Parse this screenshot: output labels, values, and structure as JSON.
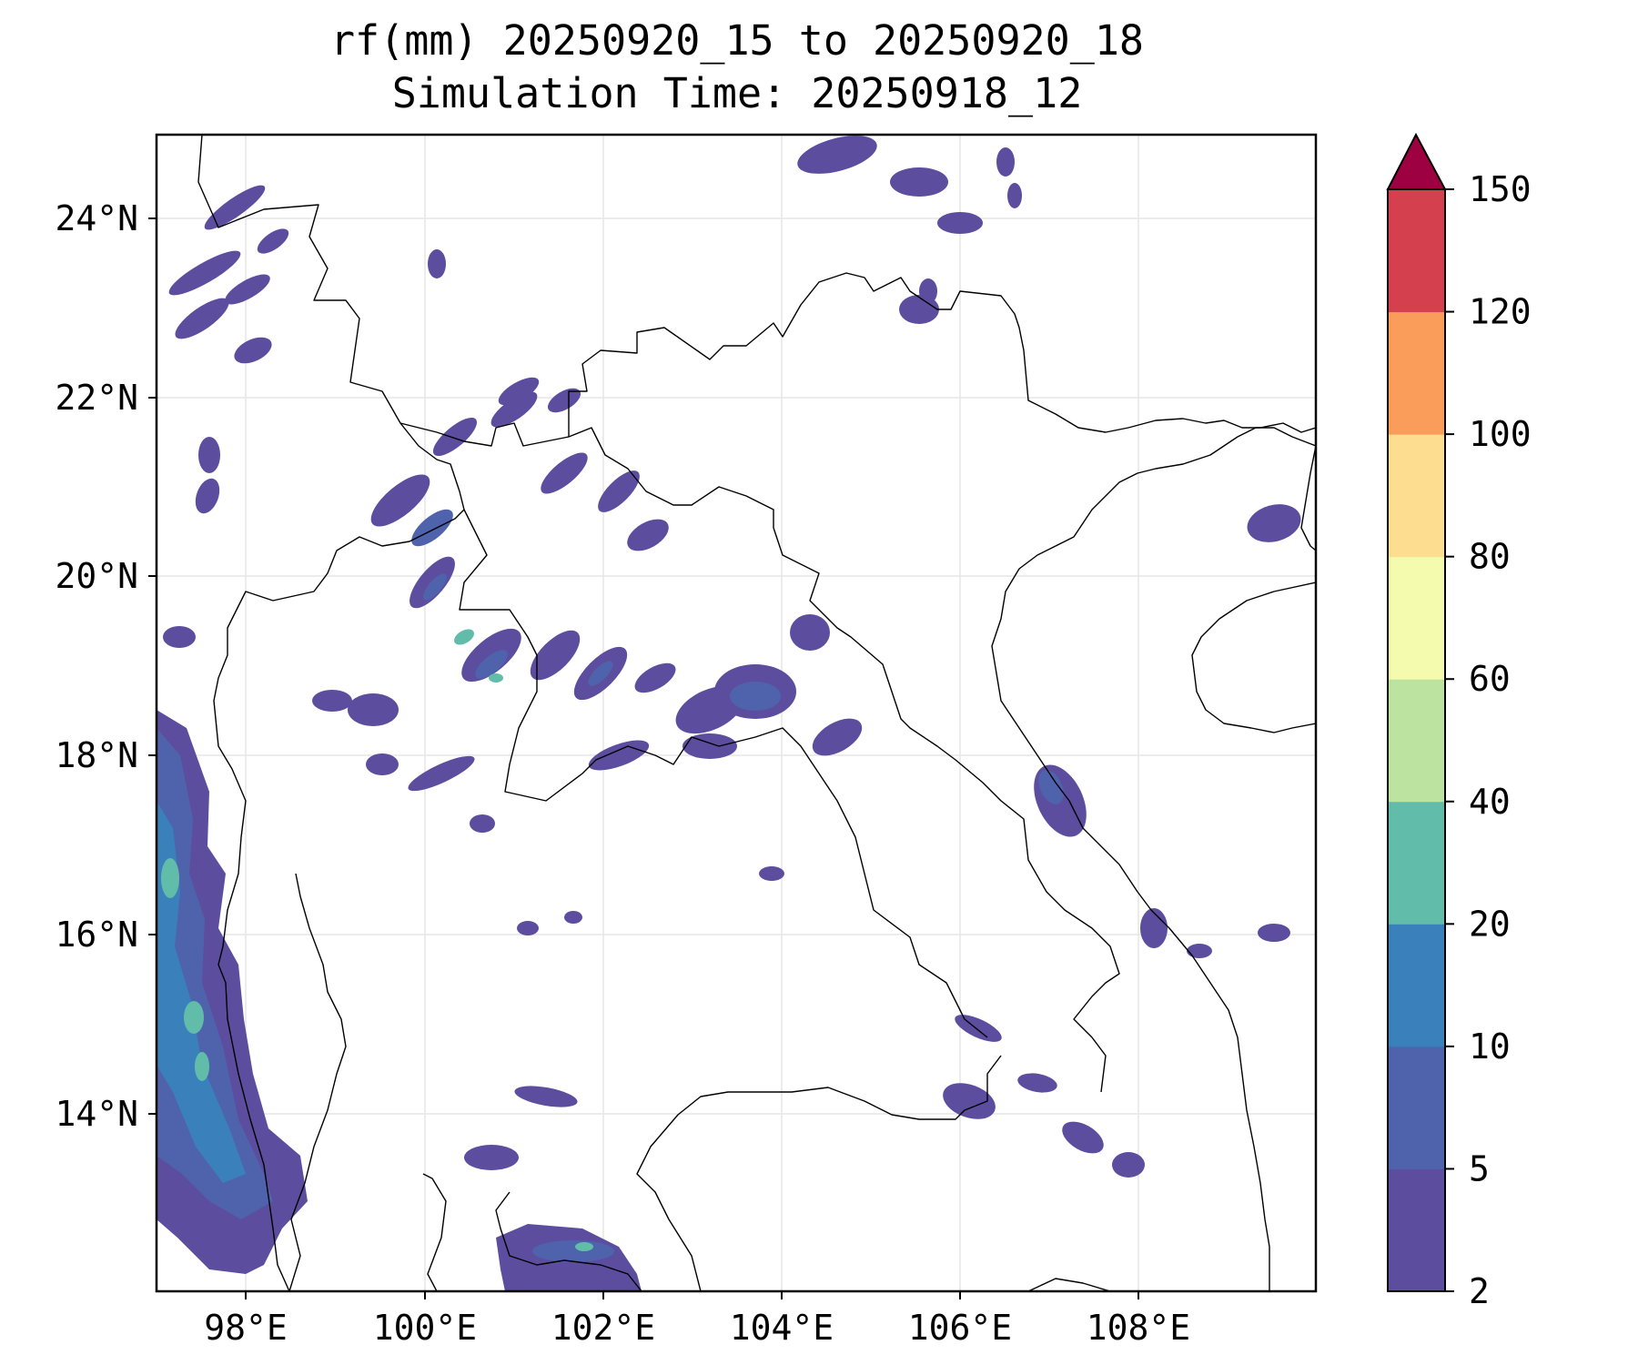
{
  "title": {
    "line1": "rf(mm) 20250920_15 to 20250920_18",
    "line2": "Simulation Time: 20250918_12"
  },
  "map": {
    "lon_range": [
      97,
      110
    ],
    "lat_range": [
      12,
      25
    ],
    "x_ticks": [
      "98°E",
      "100°E",
      "102°E",
      "104°E",
      "106°E",
      "108°E"
    ],
    "y_ticks": [
      "24°N",
      "22°N",
      "20°N",
      "18°N",
      "16°N",
      "14°N"
    ],
    "gridlines": true
  },
  "colorbar": {
    "levels": [
      "2",
      "5",
      "10",
      "20",
      "40",
      "60",
      "80",
      "100",
      "120",
      "150"
    ],
    "colors": [
      "#5c4d9f",
      "#4f63ad",
      "#3a80ba",
      "#62bcaa",
      "#bde3a0",
      "#f4fbaf",
      "#fddd8f",
      "#fa9c5a",
      "#d4404d"
    ],
    "extend_color": "#9e0142",
    "extend": "max"
  },
  "colors": {
    "light_rain": "#5c4d9f",
    "moderate_rain": "#4f63ad",
    "heavy_rain": "#3a80ba",
    "very_heavy_rain": "#62bcaa"
  }
}
